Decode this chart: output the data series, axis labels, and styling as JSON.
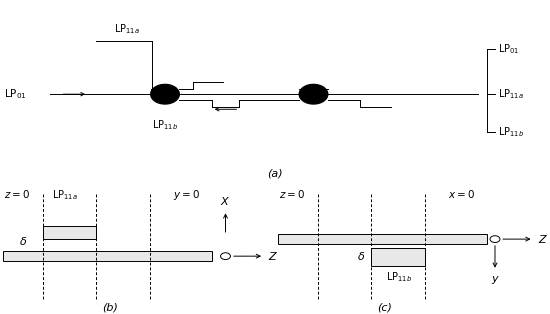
{
  "fig_width": 5.5,
  "fig_height": 3.14,
  "dpi": 100,
  "bg_color": "#ffffff",
  "text_color": "#000000",
  "label_a": "(a)",
  "label_b": "(b)",
  "label_c": "(c)"
}
